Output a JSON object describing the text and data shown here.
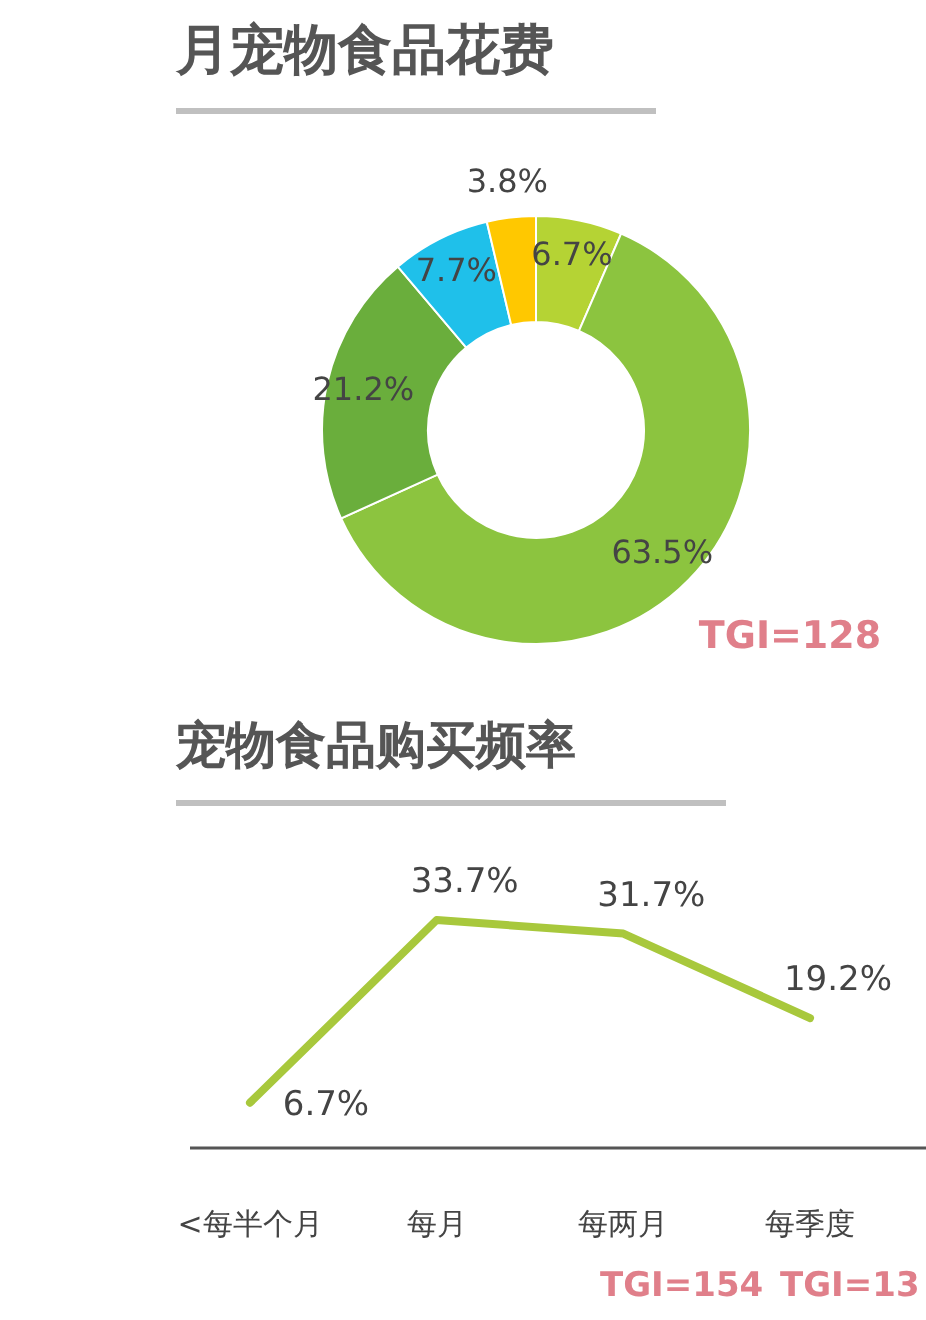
{
  "chart_data": [
    {
      "type": "donut",
      "title": "月宠物食品花费",
      "categories": [
        null,
        null,
        null,
        null,
        null
      ],
      "values": [
        6.7,
        63.5,
        21.2,
        7.7,
        3.8
      ],
      "colors": [
        "#b5d334",
        "#8cc43f",
        "#6aae3c",
        "#1fc0ea",
        "#ffc800"
      ],
      "value_labels": [
        "6.7%",
        "63.5%",
        "21.2%",
        "7.7%",
        "3.8%"
      ],
      "annotations": [
        "TGI=128"
      ]
    },
    {
      "type": "line",
      "title": "宠物食品购买频率",
      "categories": [
        "<每半个月",
        "每月",
        "每两月",
        "每季度"
      ],
      "series": [
        {
          "color": "#a8c83c",
          "values": [
            6.7,
            33.7,
            31.7,
            19.2
          ],
          "value_labels": [
            "6.7%",
            "33.7%",
            "31.7%",
            "19.2%"
          ]
        }
      ],
      "annotations": [
        "TGI=154",
        "TGI=13"
      ]
    }
  ]
}
